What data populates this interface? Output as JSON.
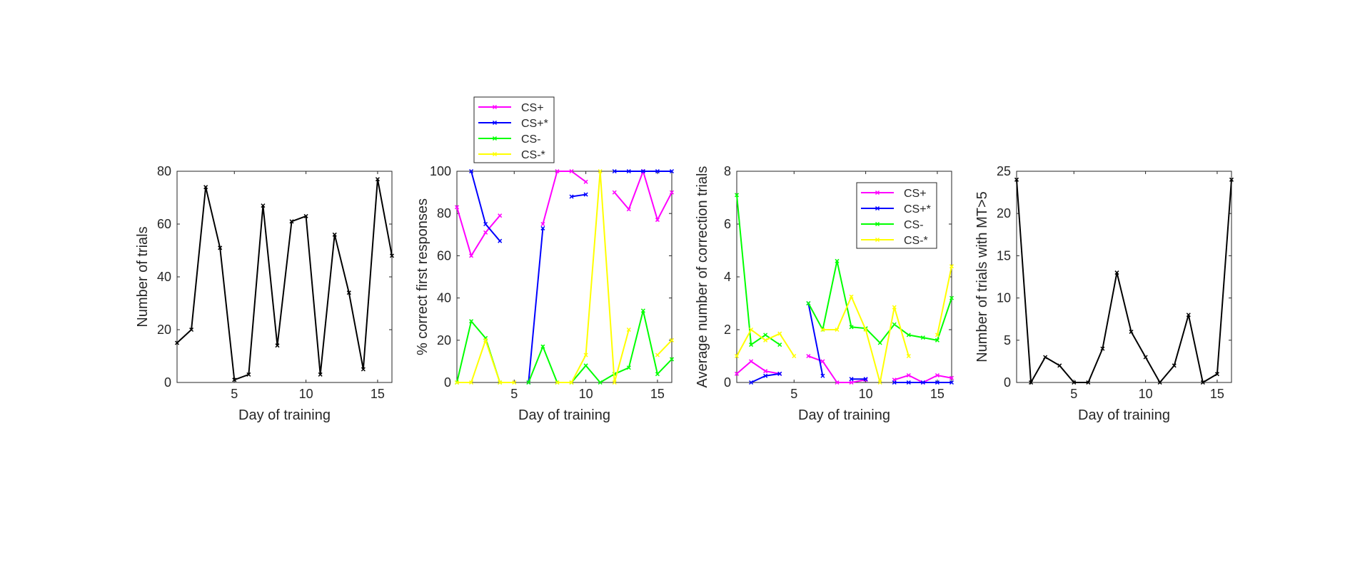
{
  "chart_data": [
    {
      "type": "line",
      "xlabel": "Day of training",
      "ylabel": "Number of trials",
      "xlim": [
        1,
        16
      ],
      "ylim": [
        0,
        80
      ],
      "xticks": [
        5,
        10,
        15
      ],
      "yticks": [
        0,
        20,
        40,
        60,
        80
      ],
      "grid": false,
      "series": [
        {
          "color": "#000000",
          "marker": "x",
          "x": [
            1,
            2,
            3,
            4,
            5,
            6,
            7,
            8,
            9,
            10,
            11,
            12,
            13,
            14,
            15,
            16
          ],
          "y": [
            15,
            20,
            74,
            51,
            1,
            3,
            67,
            14,
            61,
            63,
            3,
            56,
            34,
            5,
            77,
            48
          ]
        }
      ]
    },
    {
      "type": "line",
      "xlabel": "Day of training",
      "ylabel": "% correct first responses",
      "xlim": [
        1,
        16
      ],
      "ylim": [
        0,
        100
      ],
      "xticks": [
        5,
        10,
        15
      ],
      "yticks": [
        0,
        20,
        40,
        60,
        80,
        100
      ],
      "grid": false,
      "legend_position": "above-plot",
      "series": [
        {
          "name": "CS+",
          "color": "#ff00ff",
          "marker": "x",
          "x": [
            1,
            2,
            3,
            4,
            5,
            6,
            7,
            8,
            9,
            10,
            11,
            12,
            13,
            14,
            15,
            16
          ],
          "y": [
            83,
            60,
            71,
            79,
            null,
            null,
            75,
            100,
            100,
            95,
            null,
            90,
            82,
            100,
            77,
            90
          ]
        },
        {
          "name": "CS+*",
          "color": "#0000ff",
          "marker": "x",
          "x": [
            1,
            2,
            3,
            4,
            5,
            6,
            7,
            8,
            9,
            10,
            11,
            12,
            13,
            14,
            15,
            16
          ],
          "y": [
            null,
            100,
            75,
            67,
            null,
            0,
            73,
            null,
            88,
            89,
            null,
            100,
            100,
            100,
            100,
            100
          ]
        },
        {
          "name": "CS-",
          "color": "#00ff00",
          "marker": "x",
          "x": [
            1,
            2,
            3,
            4,
            5,
            6,
            7,
            8,
            9,
            10,
            11,
            12,
            13,
            14,
            15,
            16
          ],
          "y": [
            0,
            29,
            21,
            0,
            null,
            0,
            17,
            0,
            0,
            8,
            0,
            4,
            7,
            34,
            4,
            11
          ]
        },
        {
          "name": "CS-*",
          "color": "#ffff00",
          "marker": "x",
          "x": [
            1,
            2,
            3,
            4,
            5,
            6,
            7,
            8,
            9,
            10,
            11,
            12,
            13,
            14,
            15,
            16
          ],
          "y": [
            0,
            0,
            20,
            0,
            0,
            null,
            null,
            0,
            0,
            13,
            100,
            0,
            25,
            null,
            13,
            20
          ]
        }
      ]
    },
    {
      "type": "line",
      "xlabel": "Day of training",
      "ylabel": "Average number of correction trials",
      "xlim": [
        1,
        16
      ],
      "ylim": [
        0,
        8
      ],
      "xticks": [
        5,
        10,
        15
      ],
      "yticks": [
        0,
        2,
        4,
        6,
        8
      ],
      "grid": false,
      "legend_position": "top-right",
      "series": [
        {
          "name": "CS+",
          "color": "#ff00ff",
          "marker": "x",
          "x": [
            1,
            2,
            3,
            4,
            5,
            6,
            7,
            8,
            9,
            10,
            11,
            12,
            13,
            14,
            15,
            16
          ],
          "y": [
            0.33,
            0.8,
            0.43,
            0.33,
            null,
            1.0,
            0.8,
            0,
            0,
            0.1,
            null,
            0.1,
            0.27,
            0,
            0.27,
            0.17
          ]
        },
        {
          "name": "CS+*",
          "color": "#0000ff",
          "marker": "x",
          "x": [
            1,
            2,
            3,
            4,
            5,
            6,
            7,
            8,
            9,
            10,
            11,
            12,
            13,
            14,
            15,
            16
          ],
          "y": [
            null,
            0,
            0.25,
            0.33,
            null,
            3.0,
            0.25,
            null,
            0.13,
            0.13,
            null,
            0,
            0,
            0,
            0,
            0
          ]
        },
        {
          "name": "CS-",
          "color": "#00ff00",
          "marker": "x",
          "x": [
            1,
            2,
            3,
            4,
            5,
            6,
            7,
            8,
            9,
            10,
            11,
            12,
            13,
            14,
            15,
            16
          ],
          "y": [
            7.1,
            1.43,
            1.8,
            1.43,
            null,
            3.0,
            2.0,
            4.6,
            2.1,
            2.05,
            1.5,
            2.2,
            1.8,
            1.7,
            1.6,
            3.2
          ]
        },
        {
          "name": "CS-*",
          "color": "#ffff00",
          "marker": "x",
          "x": [
            1,
            2,
            3,
            4,
            5,
            6,
            7,
            8,
            9,
            10,
            11,
            12,
            13,
            14,
            15,
            16
          ],
          "y": [
            1.0,
            2.0,
            1.6,
            1.85,
            1.0,
            null,
            2.0,
            2.0,
            3.25,
            2.0,
            0,
            2.85,
            1.0,
            null,
            1.8,
            4.4
          ]
        }
      ]
    },
    {
      "type": "line",
      "xlabel": "Day of training",
      "ylabel": "Number of trials with MT>5",
      "xlim": [
        1,
        16
      ],
      "ylim": [
        0,
        25
      ],
      "xticks": [
        5,
        10,
        15
      ],
      "yticks": [
        0,
        5,
        10,
        15,
        20,
        25
      ],
      "grid": false,
      "series": [
        {
          "color": "#000000",
          "marker": "x",
          "x": [
            1,
            2,
            3,
            4,
            5,
            6,
            7,
            8,
            9,
            10,
            11,
            12,
            13,
            14,
            15,
            16
          ],
          "y": [
            24,
            0,
            3,
            2,
            0,
            0,
            4,
            13,
            6,
            3,
            0,
            2,
            8,
            0,
            1,
            24
          ]
        }
      ]
    }
  ]
}
